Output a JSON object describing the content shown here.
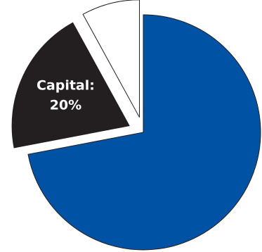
{
  "chart_data": {
    "type": "pie",
    "slices": [
      {
        "value": 72,
        "color": "#0052a5",
        "exploded": false,
        "label_lines": []
      },
      {
        "value": 20,
        "color": "#231f20",
        "exploded": true,
        "label_lines": [
          "Capital:",
          "20%"
        ]
      },
      {
        "value": 8,
        "color": "#ffffff",
        "exploded": true,
        "label_lines": []
      }
    ],
    "start_angle_deg": 0,
    "direction": "clockwise",
    "outline_color": "#231f20",
    "legend": "none",
    "grid": false
  }
}
